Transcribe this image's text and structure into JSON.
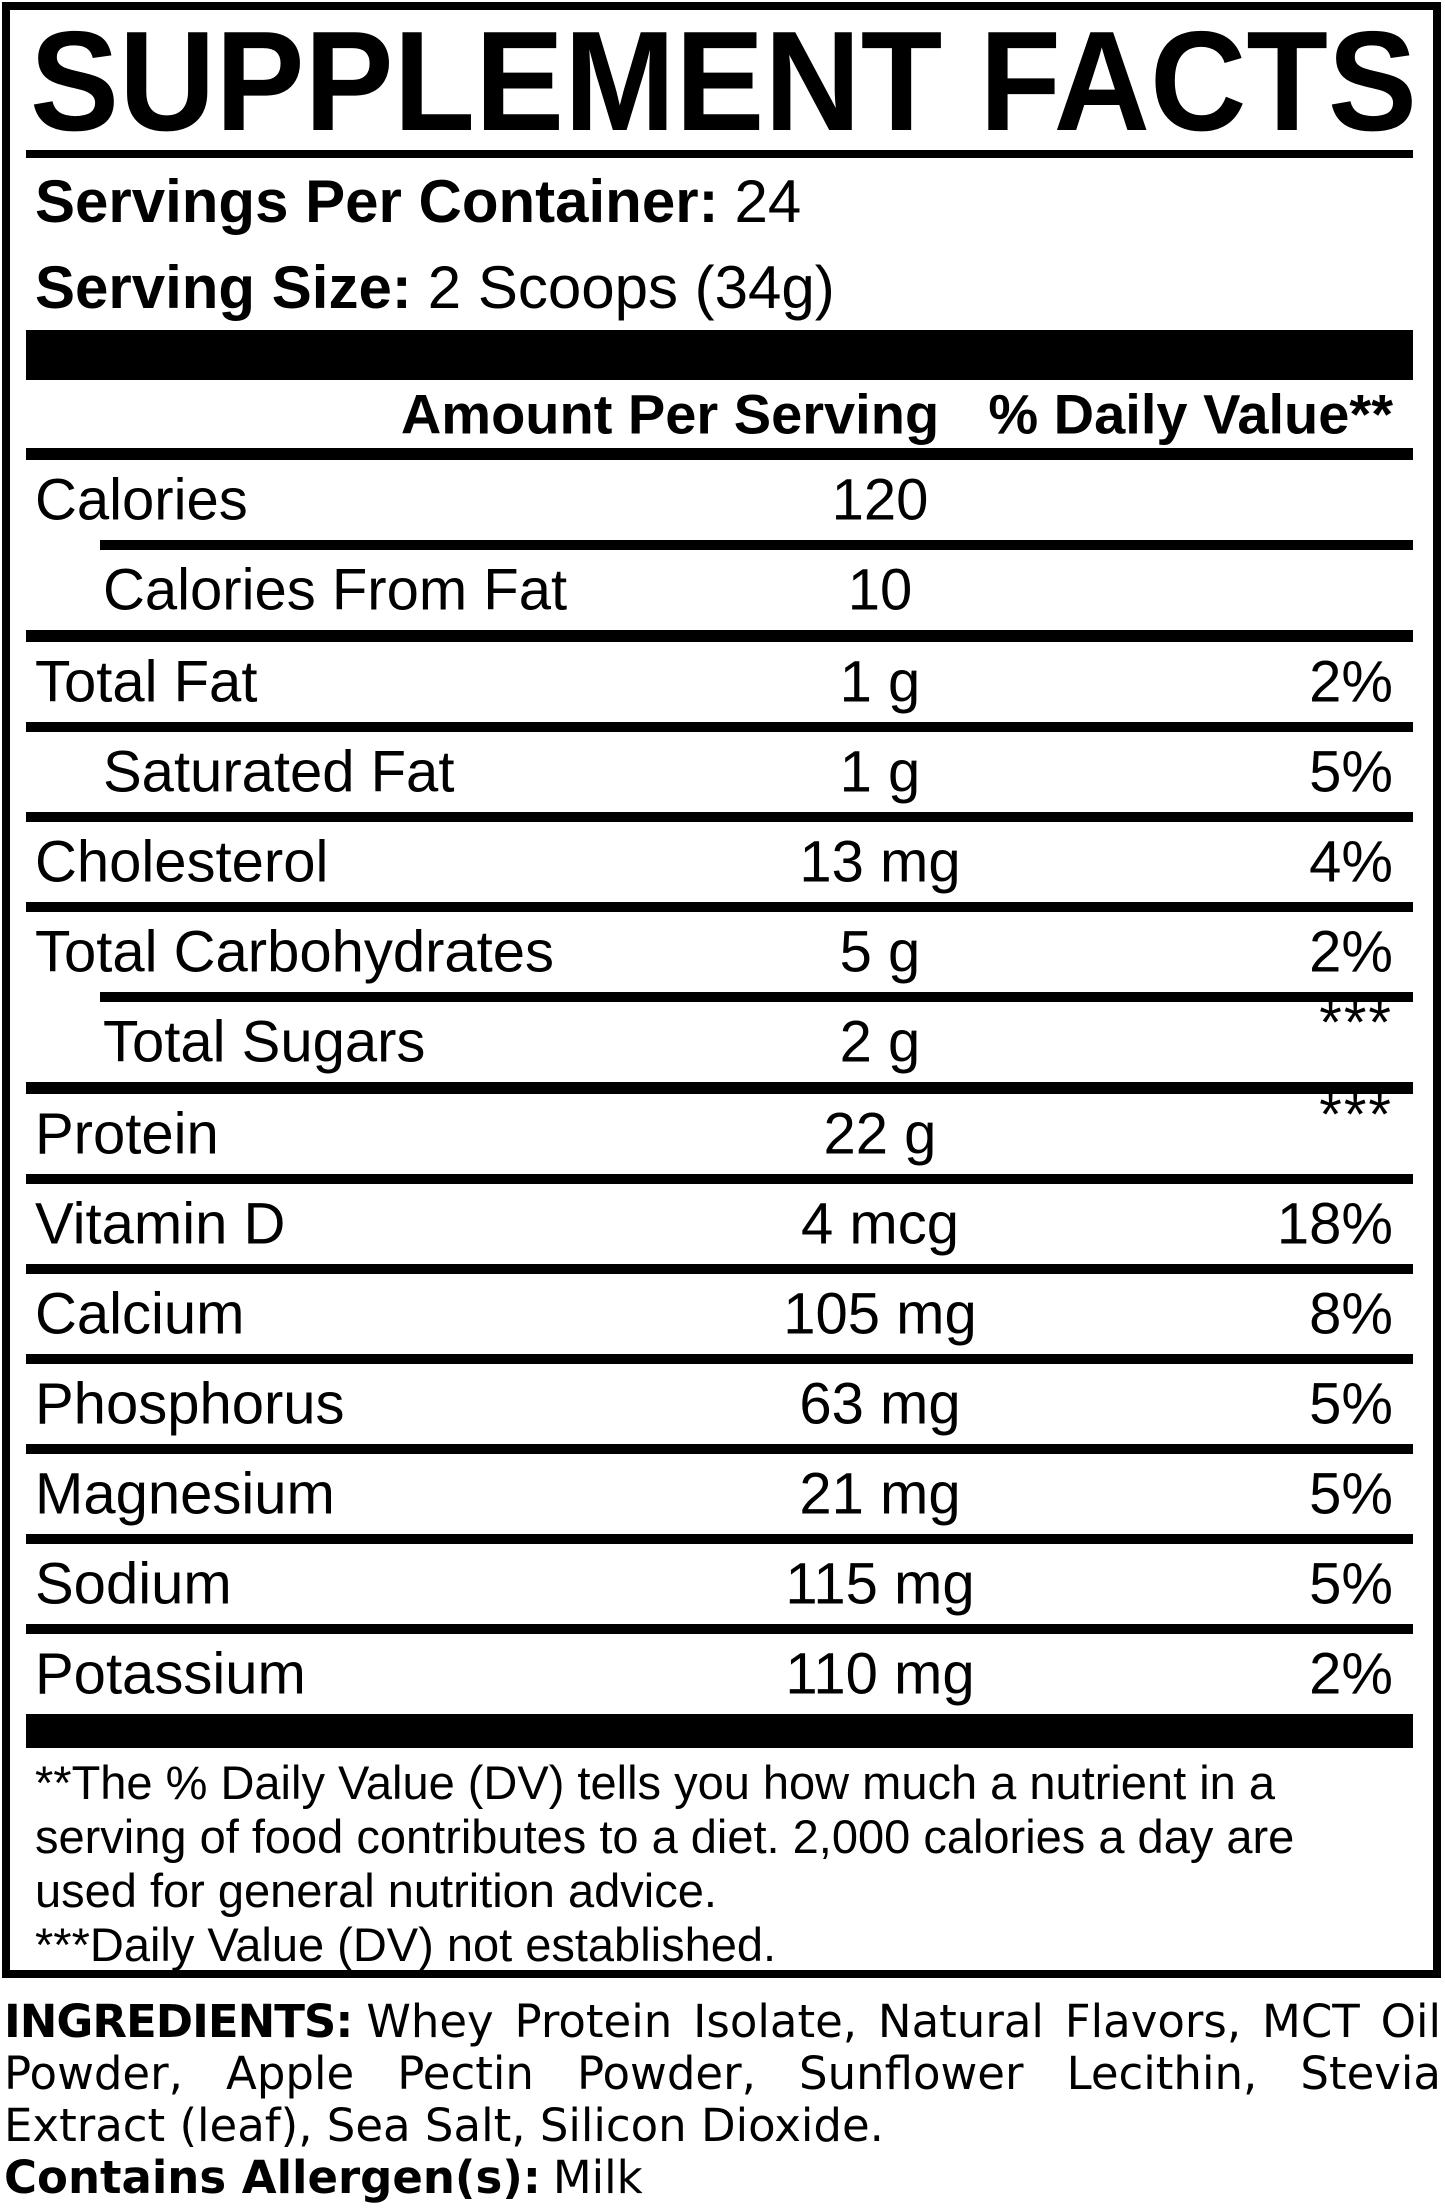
{
  "title": "SUPPLEMENT FACTS",
  "servings_per_container": {
    "label": "Servings Per Container:",
    "value": "24"
  },
  "serving_size": {
    "label": "Serving Size:",
    "value": "2 Scoops (34g)"
  },
  "table": {
    "col_amount": "Amount Per Serving",
    "col_dv": "% Daily Value**",
    "rows": [
      {
        "name": "Calories",
        "amount": "120",
        "dv": "",
        "indent": false,
        "divider": "indented"
      },
      {
        "name": "Calories From Fat",
        "amount": "10",
        "dv": "",
        "indent": true,
        "divider": "thick"
      },
      {
        "name": "Total Fat",
        "amount": "1 g",
        "dv": "2%",
        "indent": false,
        "divider": "full"
      },
      {
        "name": "Saturated Fat",
        "amount": "1 g",
        "dv": "5%",
        "indent": true,
        "divider": "full"
      },
      {
        "name": "Cholesterol",
        "amount": "13 mg",
        "dv": "4%",
        "indent": false,
        "divider": "full"
      },
      {
        "name": "Total Carbohydrates",
        "amount": "5 g",
        "dv": "2%",
        "indent": false,
        "divider": "indented"
      },
      {
        "name": "Total Sugars",
        "amount": "2 g",
        "dv": "***",
        "indent": true,
        "divider": "thick"
      },
      {
        "name": "Protein",
        "amount": "22 g",
        "dv": "***",
        "indent": false,
        "divider": "full"
      },
      {
        "name": "Vitamin D",
        "amount": "4 mcg",
        "dv": "18%",
        "indent": false,
        "divider": "full"
      },
      {
        "name": "Calcium",
        "amount": "105 mg",
        "dv": "8%",
        "indent": false,
        "divider": "full"
      },
      {
        "name": "Phosphorus",
        "amount": "63 mg",
        "dv": "5%",
        "indent": false,
        "divider": "full"
      },
      {
        "name": "Magnesium",
        "amount": "21 mg",
        "dv": "5%",
        "indent": false,
        "divider": "full"
      },
      {
        "name": "Sodium",
        "amount": "115 mg",
        "dv": "5%",
        "indent": false,
        "divider": "full"
      },
      {
        "name": "Potassium",
        "amount": "110 mg",
        "dv": "2%",
        "indent": false,
        "divider": "none"
      }
    ]
  },
  "footnotes": {
    "daily_value": "**The % Daily Value (DV) tells you how much a nutrient in a serving of food contributes to a diet. 2,000 calories a day are used for general nutrition advice.",
    "not_established": "***Daily Value (DV) not established."
  },
  "ingredients": {
    "label": "INGREDIENTS:",
    "text": "Whey Protein Isolate, Natural Flavors, MCT Oil Powder, Apple Pectin Powder, Sunflower Lecithin, Stevia Extract (leaf), Sea Salt, Silicon Dioxide."
  },
  "allergens": {
    "label": "Contains Allergen(s):",
    "value": "Milk"
  },
  "colors": {
    "ink": "#000000",
    "background": "#ffffff"
  }
}
